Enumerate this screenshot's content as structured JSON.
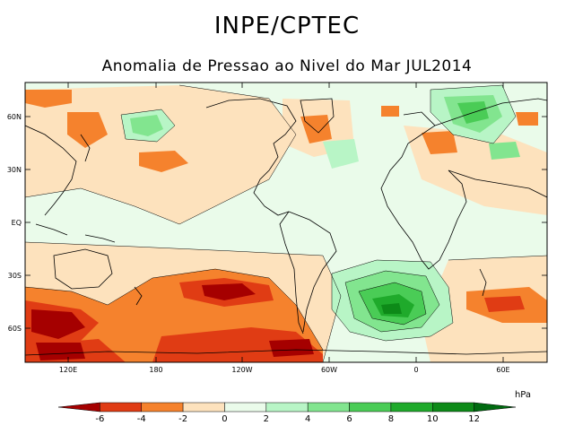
{
  "header": {
    "title": "INPE/CPTEC",
    "subtitle": "Anomalia de Pressao ao Nivel do Mar JUL2014"
  },
  "map": {
    "lat_labels": [
      "60N",
      "30N",
      "EQ",
      "30S",
      "60S"
    ],
    "lon_labels": [
      "120E",
      "180",
      "120W",
      "60W",
      "0",
      "60E"
    ]
  },
  "colorbar": {
    "unit": "hPa",
    "tick_labels": [
      "-6",
      "-4",
      "-2",
      "0",
      "2",
      "4",
      "6",
      "8",
      "10",
      "12"
    ],
    "levels": [
      -8,
      -6,
      -4,
      -2,
      0,
      2,
      4,
      6,
      8,
      10,
      12,
      14
    ],
    "colors": [
      "#a50000",
      "#e03c14",
      "#f5822d",
      "#fde2bd",
      "#eafbea",
      "#b8f5c6",
      "#82e58f",
      "#4acc56",
      "#1faa2b",
      "#0d8a18",
      "#006a10"
    ]
  },
  "colors": {
    "neg_strong": "#a50000",
    "neg_mid": "#e03c14",
    "neg_light": "#f5822d",
    "neg_faint": "#fde2bd",
    "pos_faint": "#eafbea",
    "pos_light": "#b8f5c6",
    "pos_mid": "#82e58f",
    "pos_strong": "#4acc56",
    "pos_deep": "#1faa2b",
    "pos_deepest": "#0d8a18"
  }
}
